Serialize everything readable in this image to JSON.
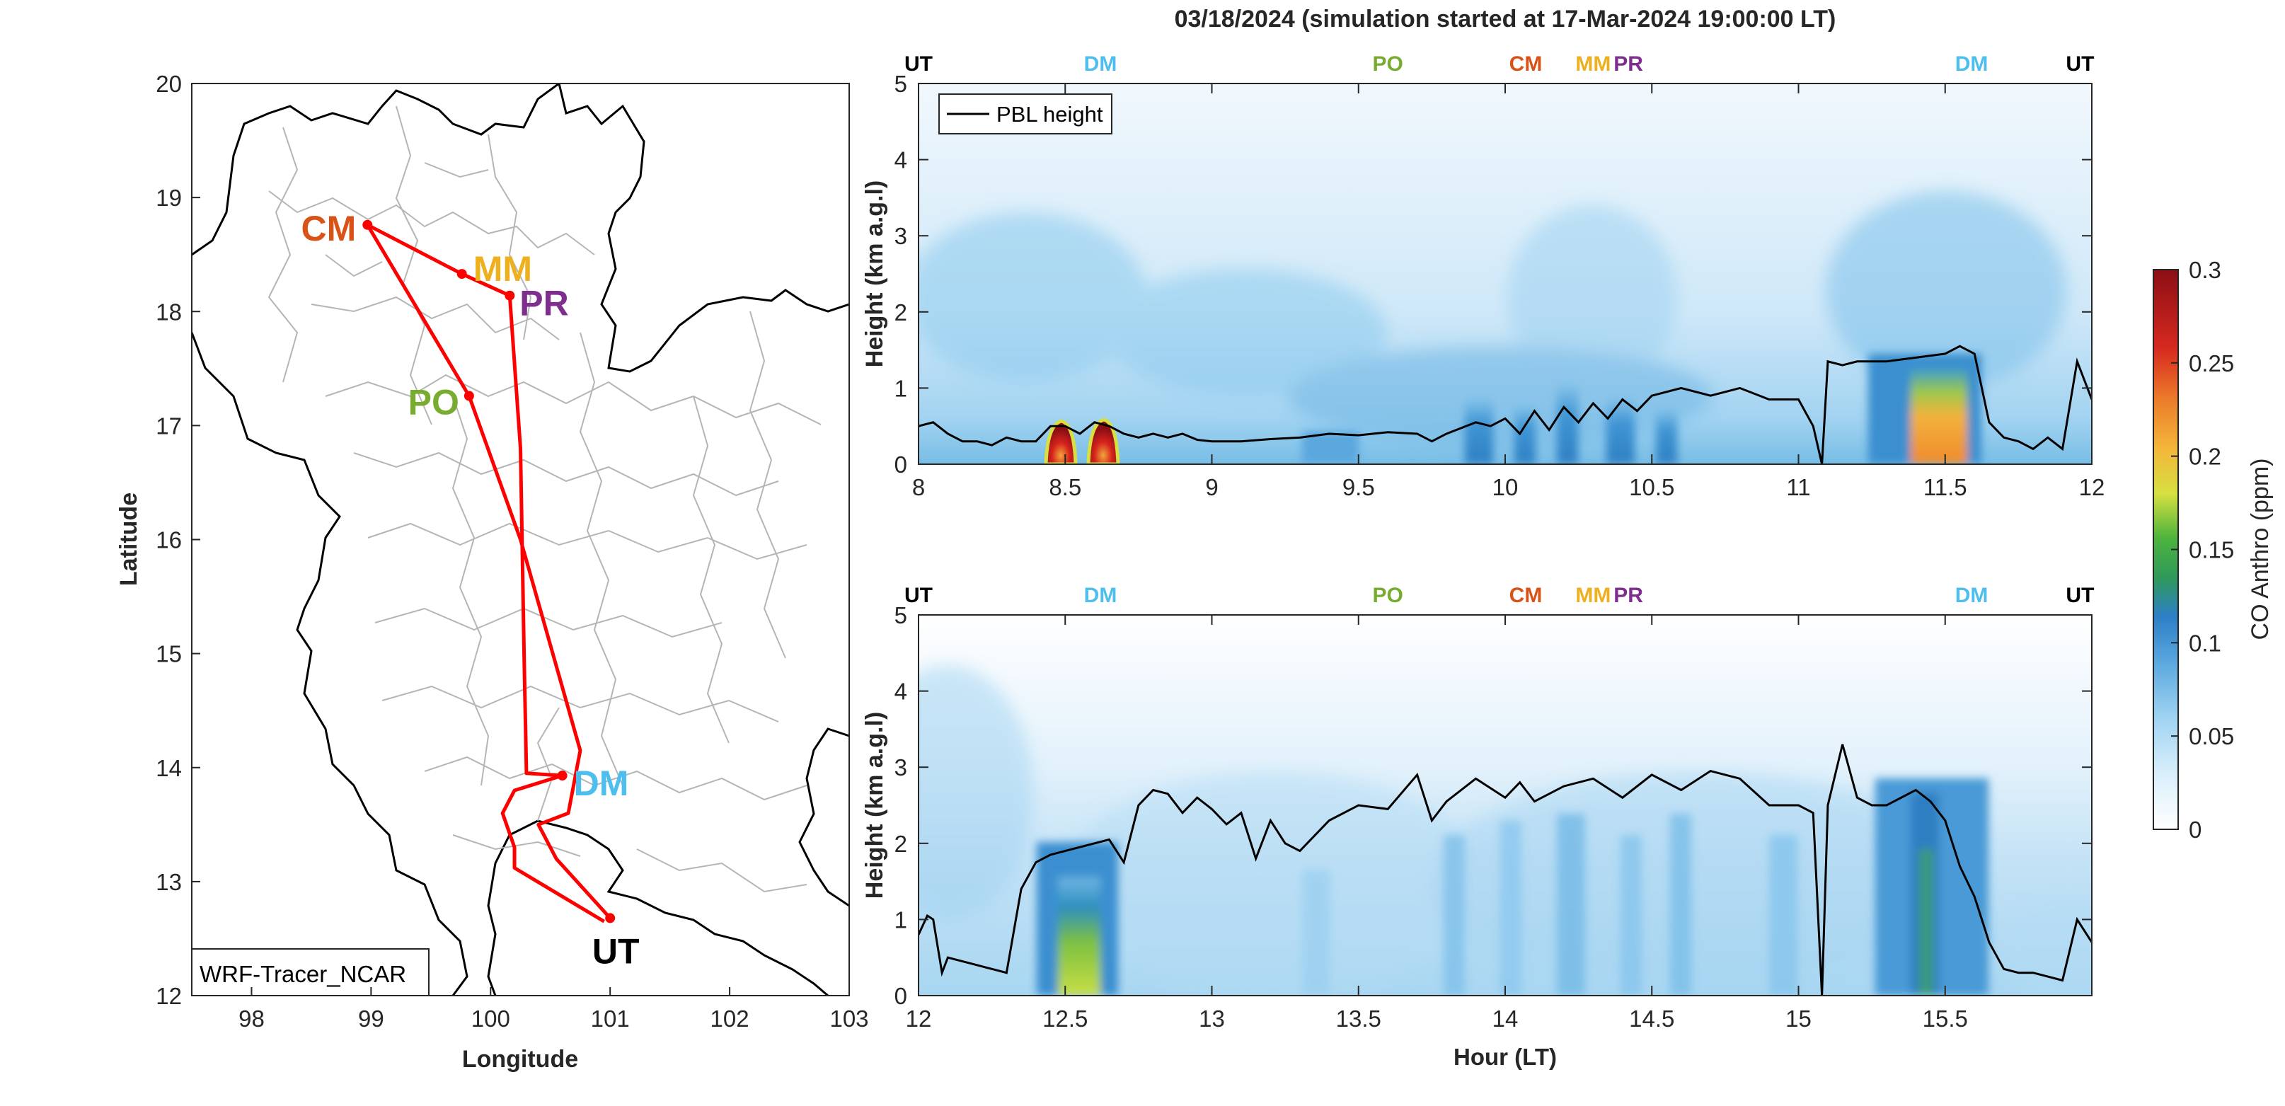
{
  "title": "03/18/2024 (simulation started at 17-Mar-2024 19:00:00 LT)",
  "colors": {
    "UT": "#000000",
    "DM": "#4DBEEE",
    "PO": "#77AC30",
    "CM": "#D95319",
    "MM": "#EDB120",
    "PR": "#7E2F8E",
    "track": "#FF0000",
    "pbl": "#000000"
  },
  "chart_data": [
    {
      "type": "map",
      "id": "map",
      "xlabel": "Longitude",
      "ylabel": "Latitude",
      "xlim": [
        97.5,
        103
      ],
      "ylim": [
        12,
        20
      ],
      "xticks": [
        98,
        99,
        100,
        101,
        102,
        103
      ],
      "yticks": [
        12,
        13,
        14,
        15,
        16,
        17,
        18,
        19,
        20
      ],
      "legend_text": "WRF-Tracer_NCAR",
      "sites": [
        {
          "name": "CM",
          "lon": 98.97,
          "lat": 18.76
        },
        {
          "name": "MM",
          "lon": 99.76,
          "lat": 18.33
        },
        {
          "name": "PR",
          "lon": 100.16,
          "lat": 18.14
        },
        {
          "name": "PO",
          "lon": 99.82,
          "lat": 17.26
        },
        {
          "name": "DM",
          "lon": 100.6,
          "lat": 13.93
        },
        {
          "name": "UT",
          "lon": 101.0,
          "lat": 12.68
        }
      ],
      "track": [
        [
          101.0,
          12.68
        ],
        [
          100.55,
          13.2
        ],
        [
          100.4,
          13.5
        ],
        [
          100.65,
          13.6
        ],
        [
          100.75,
          14.15
        ],
        [
          100.25,
          16.0
        ],
        [
          99.82,
          17.26
        ],
        [
          98.97,
          18.76
        ],
        [
          99.76,
          18.33
        ],
        [
          100.16,
          18.14
        ],
        [
          100.25,
          16.8
        ],
        [
          100.28,
          15.0
        ],
        [
          100.3,
          13.95
        ],
        [
          100.6,
          13.93
        ],
        [
          100.2,
          13.8
        ],
        [
          100.1,
          13.6
        ],
        [
          100.2,
          13.3
        ],
        [
          100.2,
          13.12
        ],
        [
          100.95,
          12.65
        ]
      ]
    },
    {
      "type": "heatmap",
      "id": "top",
      "xlabel": "",
      "ylabel": "Height (km a.g.l)",
      "xlim": [
        8,
        12
      ],
      "ylim": [
        0,
        5
      ],
      "xticks": [
        8,
        8.5,
        9,
        9.5,
        10,
        10.5,
        11,
        11.5,
        12
      ],
      "xtick_labels": [
        "8",
        "8.5",
        "9",
        "9.5",
        "10",
        "10.5",
        "11",
        "11.5",
        "12"
      ],
      "yticks": [
        0,
        1,
        2,
        3,
        4,
        5
      ],
      "legend": "PBL height",
      "site_labels": [
        {
          "text": "UT",
          "x": 8.0
        },
        {
          "text": "DM",
          "x": 8.62
        },
        {
          "text": "PO",
          "x": 9.6
        },
        {
          "text": "CM",
          "x": 10.07
        },
        {
          "text": "MM",
          "x": 10.3
        },
        {
          "text": "PR",
          "x": 10.42
        },
        {
          "text": "DM",
          "x": 11.59
        },
        {
          "text": "UT",
          "x": 11.96
        }
      ],
      "pbl_height": {
        "x": [
          8.0,
          8.05,
          8.1,
          8.15,
          8.2,
          8.25,
          8.3,
          8.35,
          8.4,
          8.45,
          8.5,
          8.55,
          8.6,
          8.65,
          8.7,
          8.75,
          8.8,
          8.85,
          8.9,
          8.95,
          9.0,
          9.1,
          9.2,
          9.3,
          9.4,
          9.5,
          9.6,
          9.7,
          9.75,
          9.8,
          9.9,
          9.95,
          10.0,
          10.05,
          10.1,
          10.15,
          10.2,
          10.25,
          10.3,
          10.35,
          10.4,
          10.45,
          10.5,
          10.6,
          10.7,
          10.8,
          10.9,
          11.0,
          11.05,
          11.08,
          11.1,
          11.15,
          11.2,
          11.3,
          11.4,
          11.5,
          11.55,
          11.6,
          11.65,
          11.7,
          11.75,
          11.8,
          11.85,
          11.9,
          11.95,
          12.0
        ],
        "y": [
          0.5,
          0.55,
          0.4,
          0.3,
          0.3,
          0.25,
          0.35,
          0.3,
          0.3,
          0.5,
          0.5,
          0.4,
          0.55,
          0.5,
          0.4,
          0.35,
          0.4,
          0.35,
          0.4,
          0.32,
          0.3,
          0.3,
          0.33,
          0.35,
          0.4,
          0.38,
          0.42,
          0.4,
          0.3,
          0.4,
          0.55,
          0.5,
          0.6,
          0.4,
          0.7,
          0.45,
          0.75,
          0.55,
          0.8,
          0.6,
          0.85,
          0.7,
          0.9,
          1.0,
          0.9,
          1.0,
          0.85,
          0.85,
          0.5,
          0.0,
          1.35,
          1.3,
          1.35,
          1.35,
          1.4,
          1.45,
          1.55,
          1.45,
          0.55,
          0.35,
          0.3,
          0.2,
          0.35,
          0.2,
          1.35,
          0.85
        ]
      }
    },
    {
      "type": "heatmap",
      "id": "bottom",
      "xlabel": "Hour (LT)",
      "ylabel": "Height (km a.g.l)",
      "xlim": [
        12,
        16
      ],
      "ylim": [
        0,
        5
      ],
      "xticks": [
        12,
        12.5,
        13,
        13.5,
        14,
        14.5,
        15,
        15.5
      ],
      "xtick_labels": [
        "12",
        "12.5",
        "13",
        "13.5",
        "14",
        "14.5",
        "15",
        "15.5"
      ],
      "yticks": [
        0,
        1,
        2,
        3,
        4,
        5
      ],
      "site_labels": [
        {
          "text": "UT",
          "x": 12.0
        },
        {
          "text": "DM",
          "x": 12.62
        },
        {
          "text": "PO",
          "x": 13.6
        },
        {
          "text": "CM",
          "x": 14.07
        },
        {
          "text": "MM",
          "x": 14.3
        },
        {
          "text": "PR",
          "x": 14.42
        },
        {
          "text": "DM",
          "x": 15.59
        },
        {
          "text": "UT",
          "x": 15.96
        }
      ],
      "pbl_height": {
        "x": [
          12.0,
          12.03,
          12.05,
          12.08,
          12.1,
          12.15,
          12.2,
          12.25,
          12.3,
          12.35,
          12.4,
          12.45,
          12.5,
          12.55,
          12.6,
          12.65,
          12.7,
          12.75,
          12.8,
          12.85,
          12.9,
          12.95,
          13.0,
          13.05,
          13.1,
          13.15,
          13.2,
          13.25,
          13.3,
          13.4,
          13.5,
          13.6,
          13.7,
          13.75,
          13.8,
          13.9,
          14.0,
          14.05,
          14.1,
          14.2,
          14.3,
          14.4,
          14.5,
          14.6,
          14.7,
          14.8,
          14.9,
          15.0,
          15.05,
          15.08,
          15.1,
          15.15,
          15.2,
          15.25,
          15.3,
          15.35,
          15.4,
          15.45,
          15.5,
          15.55,
          15.6,
          15.65,
          15.7,
          15.75,
          15.8,
          15.85,
          15.9,
          15.95,
          16.0
        ],
        "y": [
          0.8,
          1.05,
          1.0,
          0.3,
          0.5,
          0.45,
          0.4,
          0.35,
          0.3,
          1.4,
          1.75,
          1.85,
          1.9,
          1.95,
          2.0,
          2.05,
          1.75,
          2.5,
          2.7,
          2.65,
          2.4,
          2.6,
          2.45,
          2.25,
          2.4,
          1.8,
          2.3,
          2.0,
          1.9,
          2.3,
          2.5,
          2.45,
          2.9,
          2.3,
          2.55,
          2.85,
          2.6,
          2.8,
          2.55,
          2.75,
          2.85,
          2.6,
          2.9,
          2.7,
          2.95,
          2.85,
          2.5,
          2.5,
          2.4,
          0.0,
          2.5,
          3.3,
          2.6,
          2.5,
          2.5,
          2.6,
          2.7,
          2.55,
          2.3,
          1.7,
          1.3,
          0.7,
          0.35,
          0.3,
          0.3,
          0.25,
          0.2,
          1.0,
          0.7
        ]
      }
    }
  ],
  "colorbar": {
    "label": "CO Anthro (ppm)",
    "ticks": [
      0,
      0.05,
      0.1,
      0.15,
      0.2,
      0.25,
      0.3
    ],
    "tick_labels": [
      "0",
      "0.05",
      "0.1",
      "0.15",
      "0.2",
      "0.25",
      "0.3"
    ],
    "range": [
      0,
      0.3
    ]
  }
}
